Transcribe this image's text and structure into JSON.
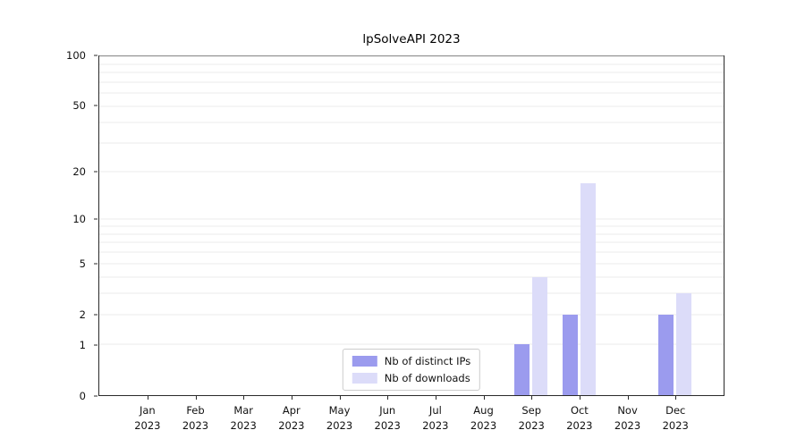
{
  "chart_data": {
    "type": "bar",
    "title": "lpSolveAPI 2023",
    "categories": [
      {
        "month": "Jan",
        "year": "2023"
      },
      {
        "month": "Feb",
        "year": "2023"
      },
      {
        "month": "Mar",
        "year": "2023"
      },
      {
        "month": "Apr",
        "year": "2023"
      },
      {
        "month": "May",
        "year": "2023"
      },
      {
        "month": "Jun",
        "year": "2023"
      },
      {
        "month": "Jul",
        "year": "2023"
      },
      {
        "month": "Aug",
        "year": "2023"
      },
      {
        "month": "Sep",
        "year": "2023"
      },
      {
        "month": "Oct",
        "year": "2023"
      },
      {
        "month": "Nov",
        "year": "2023"
      },
      {
        "month": "Dec",
        "year": "2023"
      }
    ],
    "series": [
      {
        "name": "Nb of distinct IPs",
        "color": "#9b9bee",
        "values": [
          0,
          0,
          0,
          0,
          0,
          0,
          0,
          0,
          1,
          2,
          0,
          2
        ]
      },
      {
        "name": "Nb of downloads",
        "color": "#dcdcf9",
        "values": [
          0,
          0,
          0,
          0,
          0,
          0,
          0,
          0,
          4,
          17,
          0,
          3
        ]
      }
    ],
    "yscale": "log1p",
    "ylim": [
      0,
      100
    ],
    "y_ticks": [
      0,
      1,
      2,
      5,
      10,
      20,
      50,
      100
    ],
    "minor_gridlines": [
      1,
      2,
      3,
      4,
      5,
      6,
      7,
      8,
      9,
      10,
      20,
      30,
      40,
      50,
      60,
      70,
      80,
      90,
      100
    ],
    "grid": true,
    "legend_position": "lower center",
    "axis_color": "#2a2a2a",
    "grid_color": "#ebebeb"
  }
}
